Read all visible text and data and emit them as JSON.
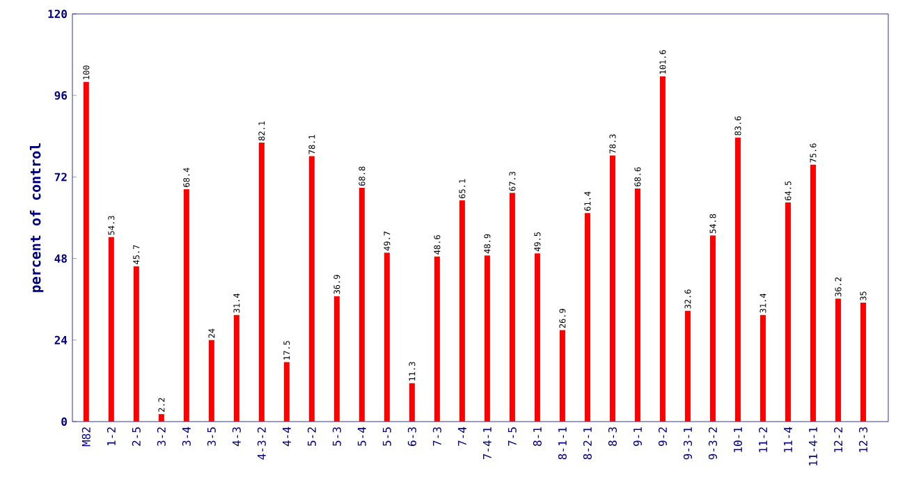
{
  "chart_data": {
    "type": "bar",
    "ylabel": "percent of control",
    "categories": [
      "M82",
      "1-2",
      "2-5",
      "3-2",
      "3-4",
      "3-5",
      "4-3",
      "4-3-2",
      "4-4",
      "5-2",
      "5-3",
      "5-4",
      "5-5",
      "6-3",
      "7-3",
      "7-4",
      "7-4-1",
      "7-5",
      "8-1",
      "8-1-1",
      "8-2-1",
      "8-3",
      "9-1",
      "9-2",
      "9-3-1",
      "9-3-2",
      "10-1",
      "11-2",
      "11-4",
      "11-4-1",
      "12-2",
      "12-3"
    ],
    "values": [
      100,
      54.3,
      45.7,
      2.2,
      68.4,
      24,
      31.4,
      82.1,
      17.5,
      78.1,
      36.9,
      68.8,
      49.7,
      11.3,
      48.6,
      65.1,
      48.9,
      67.3,
      49.5,
      26.9,
      61.4,
      78.3,
      68.6,
      101.6,
      32.6,
      54.8,
      83.6,
      31.4,
      64.5,
      75.6,
      36.2,
      35
    ],
    "color": "#ff0000",
    "ylim": [
      0,
      120
    ],
    "yticks": [
      0,
      24,
      48,
      72,
      96,
      120
    ],
    "grid": false,
    "data_labels": true
  }
}
